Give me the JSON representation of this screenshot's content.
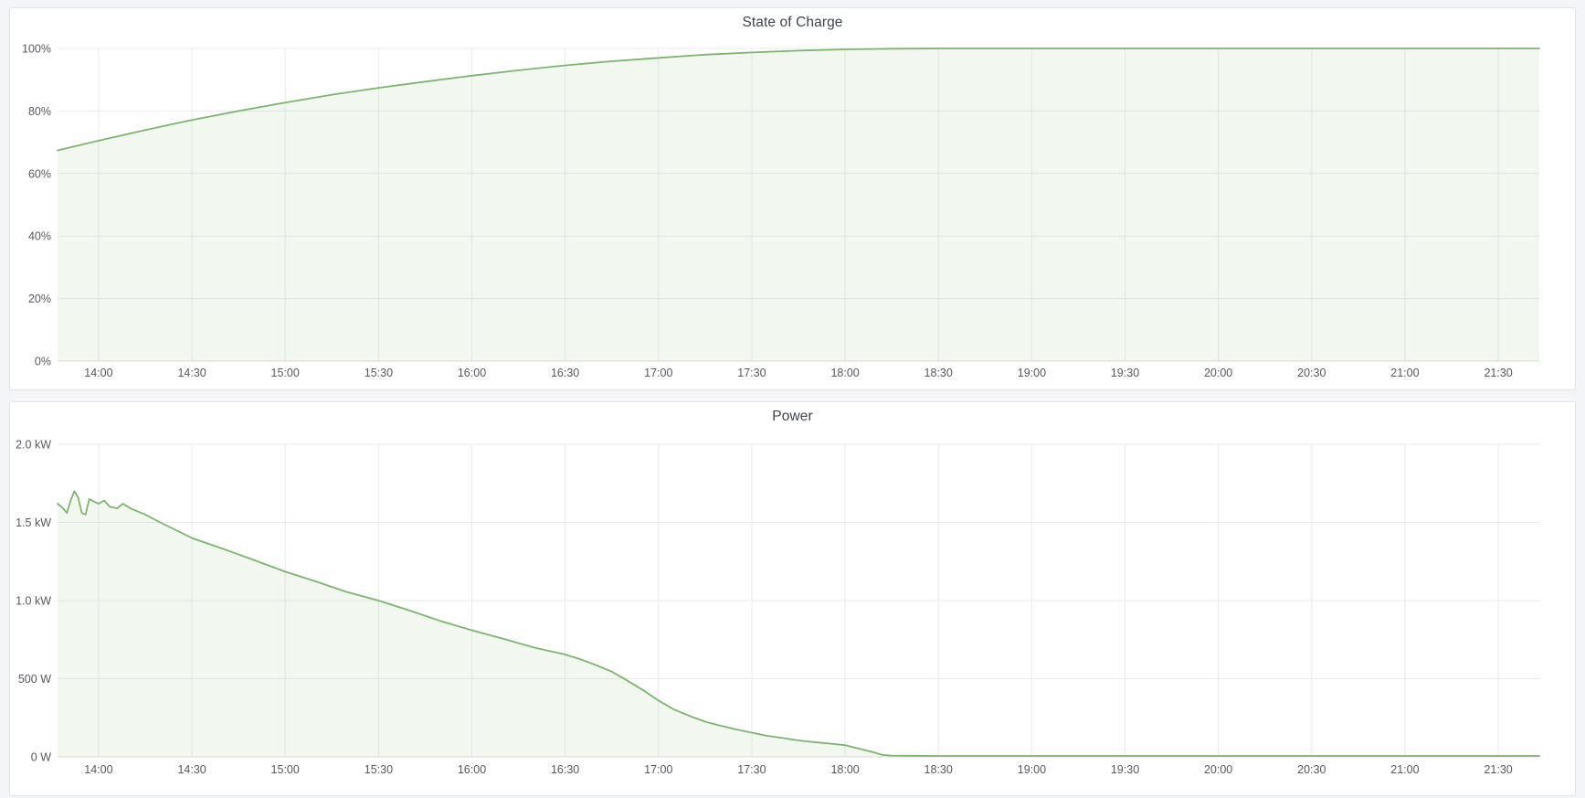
{
  "page": {
    "background": "#f4f5f9",
    "panel_background": "#ffffff",
    "panel_border": "#e0e2e8"
  },
  "colors": {
    "line": "#7cb56e",
    "fill": "rgba(124,181,110,0.10)",
    "grid": "#e9eaec",
    "axis": "#dcdde1",
    "tick_text": "#55585f",
    "title_text": "#3f444c"
  },
  "time_axis": {
    "domain": [
      13.78,
      21.72
    ],
    "ticks": [
      {
        "value": 14.0,
        "label": "14:00"
      },
      {
        "value": 14.5,
        "label": "14:30"
      },
      {
        "value": 15.0,
        "label": "15:00"
      },
      {
        "value": 15.5,
        "label": "15:30"
      },
      {
        "value": 16.0,
        "label": "16:00"
      },
      {
        "value": 16.5,
        "label": "16:30"
      },
      {
        "value": 17.0,
        "label": "17:00"
      },
      {
        "value": 17.5,
        "label": "17:30"
      },
      {
        "value": 18.0,
        "label": "18:00"
      },
      {
        "value": 18.5,
        "label": "18:30"
      },
      {
        "value": 19.0,
        "label": "19:00"
      },
      {
        "value": 19.5,
        "label": "19:30"
      },
      {
        "value": 20.0,
        "label": "20:00"
      },
      {
        "value": 20.5,
        "label": "20:30"
      },
      {
        "value": 21.0,
        "label": "21:00"
      },
      {
        "value": 21.5,
        "label": "21:30"
      }
    ]
  },
  "chart_data": [
    {
      "id": "state-of-charge",
      "type": "area",
      "title": "State of Charge",
      "xlabel": "",
      "ylabel": "",
      "x_unit": "hour-of-day",
      "y_axis": {
        "domain": [
          0,
          100
        ],
        "ticks": [
          {
            "value": 0,
            "label": "0%"
          },
          {
            "value": 20,
            "label": "20%"
          },
          {
            "value": 40,
            "label": "40%"
          },
          {
            "value": 60,
            "label": "60%"
          },
          {
            "value": 80,
            "label": "80%"
          },
          {
            "value": 100,
            "label": "100%"
          }
        ]
      },
      "points": [
        [
          13.78,
          67.4
        ],
        [
          14.0,
          70.5
        ],
        [
          14.25,
          73.9
        ],
        [
          14.5,
          77.1
        ],
        [
          14.75,
          80.0
        ],
        [
          15.0,
          82.7
        ],
        [
          15.25,
          85.2
        ],
        [
          15.5,
          87.4
        ],
        [
          15.75,
          89.4
        ],
        [
          16.0,
          91.3
        ],
        [
          16.25,
          93.0
        ],
        [
          16.5,
          94.6
        ],
        [
          16.75,
          95.9
        ],
        [
          17.0,
          97.0
        ],
        [
          17.25,
          98.0
        ],
        [
          17.5,
          98.7
        ],
        [
          17.75,
          99.3
        ],
        [
          18.0,
          99.7
        ],
        [
          18.25,
          99.9
        ],
        [
          18.5,
          100
        ],
        [
          19.0,
          100
        ],
        [
          20.0,
          100
        ],
        [
          21.0,
          100
        ],
        [
          21.72,
          100
        ]
      ]
    },
    {
      "id": "power",
      "type": "area",
      "title": "Power",
      "xlabel": "",
      "ylabel": "",
      "x_unit": "hour-of-day",
      "y_unit": "W",
      "y_axis": {
        "domain": [
          0,
          2000
        ],
        "ticks": [
          {
            "value": 0,
            "label": "0 W"
          },
          {
            "value": 500,
            "label": "500 W"
          },
          {
            "value": 1000,
            "label": "1.0 kW"
          },
          {
            "value": 1500,
            "label": "1.5 kW"
          },
          {
            "value": 2000,
            "label": "2.0 kW"
          }
        ]
      },
      "points": [
        [
          13.78,
          1620
        ],
        [
          13.81,
          1590
        ],
        [
          13.83,
          1560
        ],
        [
          13.85,
          1640
        ],
        [
          13.87,
          1700
        ],
        [
          13.89,
          1660
        ],
        [
          13.91,
          1560
        ],
        [
          13.93,
          1550
        ],
        [
          13.95,
          1650
        ],
        [
          13.98,
          1630
        ],
        [
          14.0,
          1620
        ],
        [
          14.03,
          1640
        ],
        [
          14.06,
          1600
        ],
        [
          14.1,
          1590
        ],
        [
          14.13,
          1620
        ],
        [
          14.17,
          1590
        ],
        [
          14.2,
          1575
        ],
        [
          14.25,
          1550
        ],
        [
          14.33,
          1500
        ],
        [
          14.5,
          1400
        ],
        [
          14.67,
          1330
        ],
        [
          14.83,
          1260
        ],
        [
          15.0,
          1185
        ],
        [
          15.17,
          1120
        ],
        [
          15.33,
          1055
        ],
        [
          15.5,
          1000
        ],
        [
          15.67,
          935
        ],
        [
          15.83,
          870
        ],
        [
          16.0,
          810
        ],
        [
          16.17,
          755
        ],
        [
          16.33,
          700
        ],
        [
          16.5,
          655
        ],
        [
          16.58,
          625
        ],
        [
          16.67,
          585
        ],
        [
          16.75,
          545
        ],
        [
          16.83,
          490
        ],
        [
          16.92,
          425
        ],
        [
          17.0,
          360
        ],
        [
          17.08,
          305
        ],
        [
          17.17,
          260
        ],
        [
          17.25,
          225
        ],
        [
          17.33,
          200
        ],
        [
          17.42,
          175
        ],
        [
          17.5,
          155
        ],
        [
          17.58,
          135
        ],
        [
          17.67,
          120
        ],
        [
          17.75,
          105
        ],
        [
          17.83,
          95
        ],
        [
          17.92,
          85
        ],
        [
          18.0,
          75
        ],
        [
          18.05,
          60
        ],
        [
          18.1,
          45
        ],
        [
          18.15,
          30
        ],
        [
          18.2,
          12
        ],
        [
          18.25,
          8
        ],
        [
          18.5,
          6
        ],
        [
          19.0,
          6
        ],
        [
          20.0,
          6
        ],
        [
          21.0,
          6
        ],
        [
          21.72,
          6
        ]
      ]
    }
  ]
}
